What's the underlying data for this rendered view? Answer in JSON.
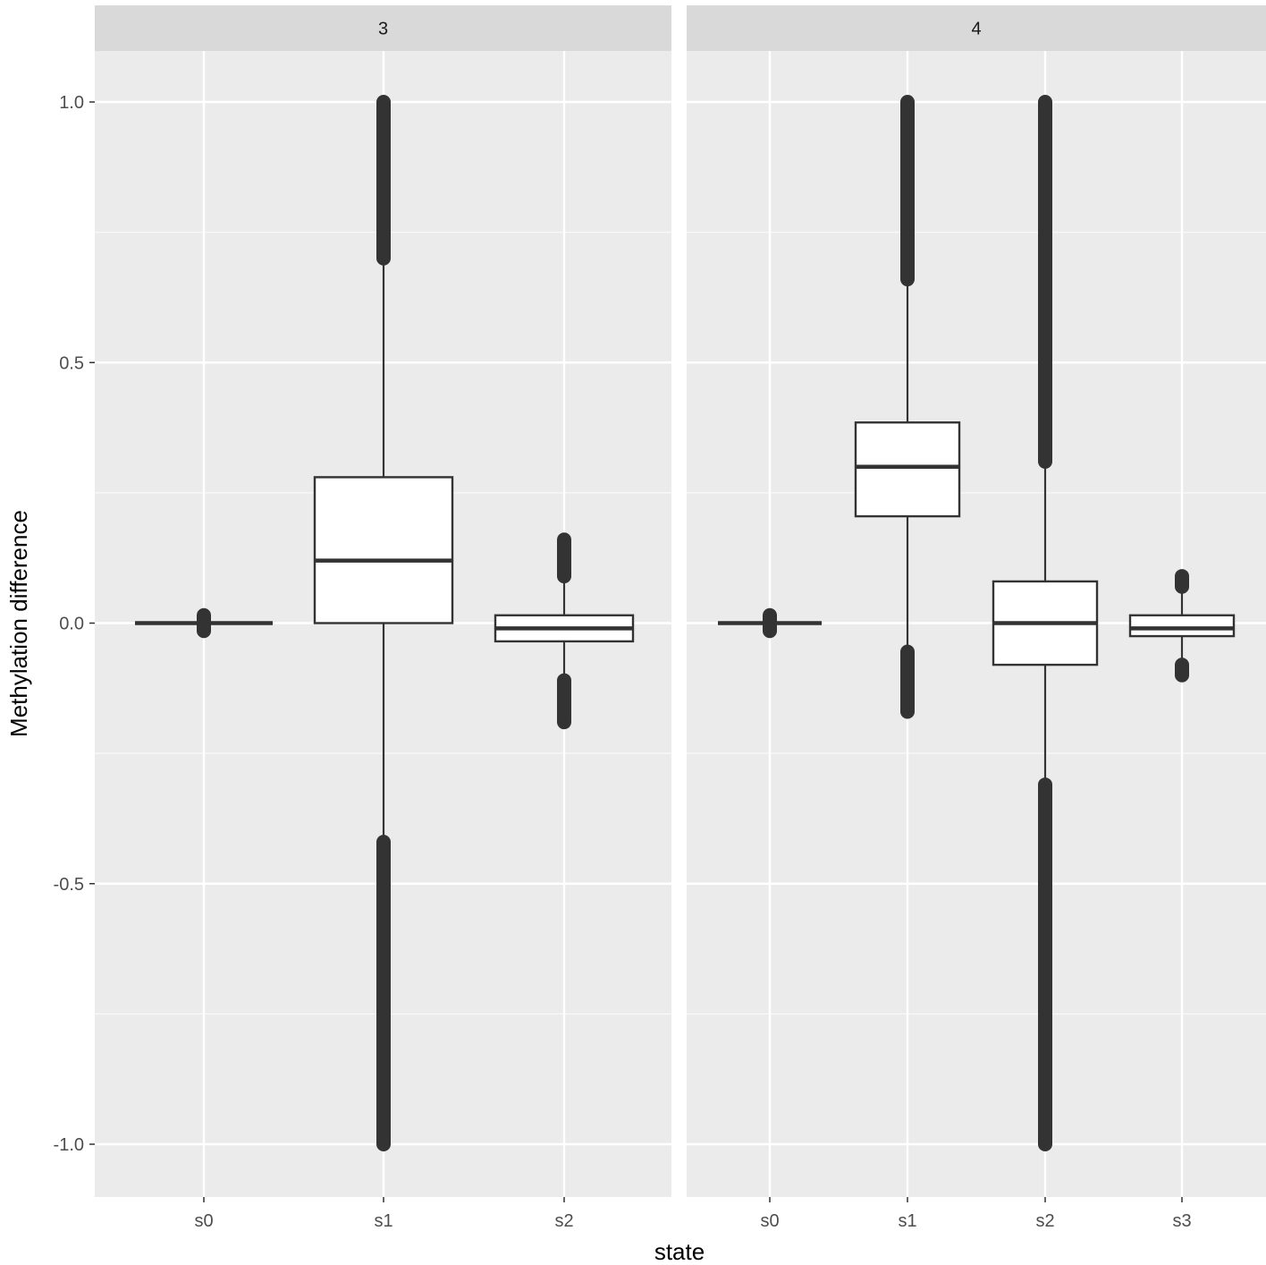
{
  "chart_data": {
    "type": "boxplot",
    "xlabel": "state",
    "ylabel": "Methylation difference",
    "ylim": [
      -1.1,
      1.1
    ],
    "y_ticks": [
      1.0,
      0.5,
      0.0,
      -0.5,
      -1.0
    ],
    "y_tick_labels": [
      "1.0",
      "0.5",
      "0.0",
      "-0.5",
      "-1.0"
    ],
    "grid": true,
    "colors": {
      "panel_bg": "#ebebeb",
      "strip_bg": "#d9d9d9",
      "grid": "#ffffff",
      "box_fill": "#ffffff",
      "box_line": "#333333"
    },
    "facets": [
      {
        "label": "3",
        "categories": [
          "s0",
          "s1",
          "s2"
        ],
        "boxes": [
          {
            "q1": 0.0,
            "median": 0.0,
            "q3": 0.0,
            "whisker_low": 0.0,
            "whisker_high": 0.0,
            "outliers_high": [
              0.005,
              0.015
            ],
            "outliers_low": [
              -0.005,
              -0.015
            ]
          },
          {
            "q1": 0.0,
            "median": 0.12,
            "q3": 0.28,
            "whisker_low": -0.42,
            "whisker_high": 0.7,
            "outliers_high": [
              0.7,
              1.0
            ],
            "outliers_low": [
              -1.0,
              -0.42
            ]
          },
          {
            "q1": -0.035,
            "median": -0.01,
            "q3": 0.015,
            "whisker_low": -0.11,
            "whisker_high": 0.09,
            "outliers_high": [
              0.09,
              0.16
            ],
            "outliers_low": [
              -0.19,
              -0.11
            ]
          }
        ]
      },
      {
        "label": "4",
        "categories": [
          "s0",
          "s1",
          "s2",
          "s3"
        ],
        "boxes": [
          {
            "q1": 0.0,
            "median": 0.0,
            "q3": 0.0,
            "whisker_low": 0.0,
            "whisker_high": 0.0,
            "outliers_high": [
              0.005,
              0.015
            ],
            "outliers_low": [
              -0.005,
              -0.015
            ]
          },
          {
            "q1": 0.205,
            "median": 0.3,
            "q3": 0.385,
            "whisker_low": -0.055,
            "whisker_high": 0.66,
            "outliers_high": [
              0.66,
              1.0
            ],
            "outliers_low": [
              -0.17,
              -0.055
            ]
          },
          {
            "q1": -0.08,
            "median": 0.0,
            "q3": 0.08,
            "whisker_low": -0.31,
            "whisker_high": 0.31,
            "outliers_high": [
              0.31,
              1.0
            ],
            "outliers_low": [
              -1.0,
              -0.31
            ]
          },
          {
            "q1": -0.025,
            "median": -0.01,
            "q3": 0.015,
            "whisker_low": -0.085,
            "whisker_high": 0.085,
            "outliers_high": [
              0.07,
              0.09
            ],
            "outliers_low": [
              -0.1,
              -0.08
            ]
          }
        ]
      }
    ]
  }
}
